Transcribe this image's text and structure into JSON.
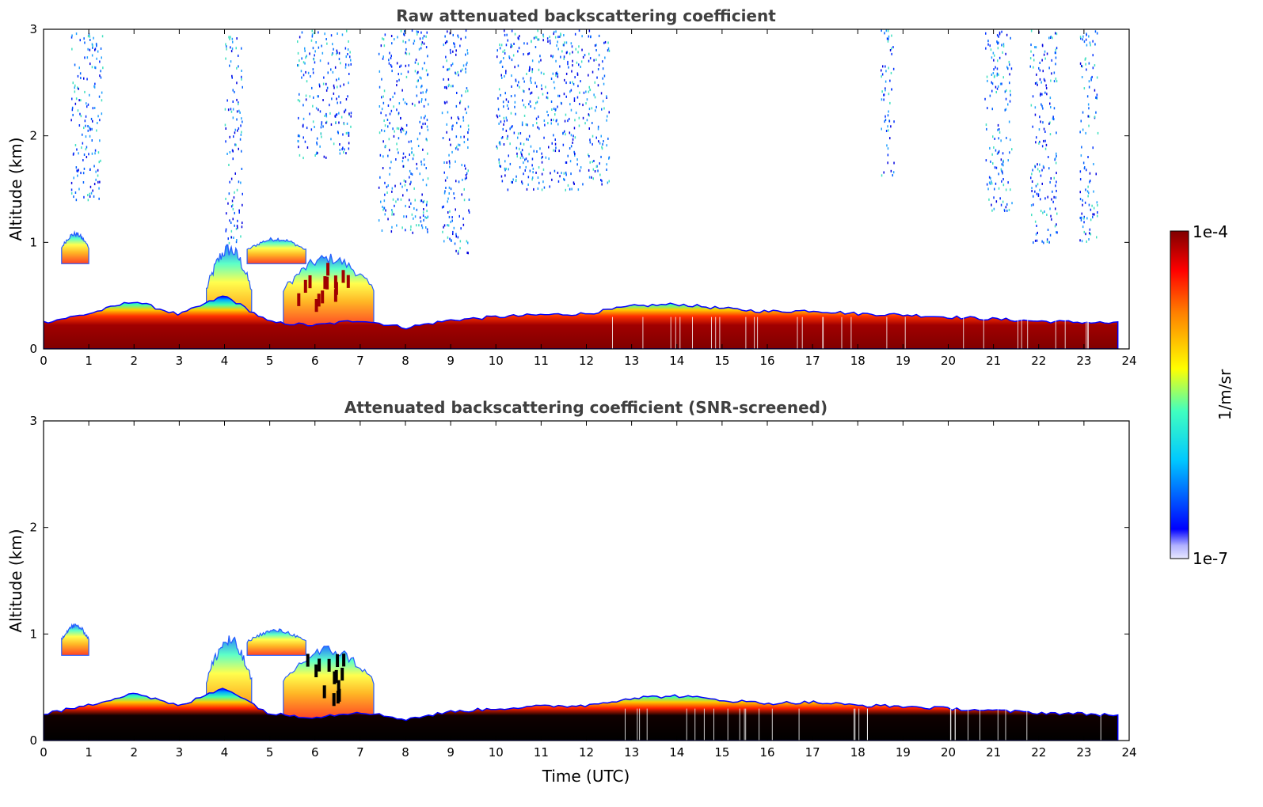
{
  "chart_data": [
    {
      "type": "heatmap",
      "title": "Raw attenuated backscattering coefficient",
      "xlabel": "",
      "ylabel": "Altitude (km)",
      "xlim": [
        0,
        24
      ],
      "ylim": [
        0,
        3
      ],
      "x_ticks": [
        "0",
        "1",
        "2",
        "3",
        "4",
        "5",
        "6",
        "7",
        "8",
        "9",
        "10",
        "11",
        "12",
        "13",
        "14",
        "15",
        "16",
        "17",
        "18",
        "19",
        "20",
        "21",
        "22",
        "23",
        "24"
      ],
      "y_ticks": [
        "0",
        "1",
        "2",
        "3"
      ],
      "data_end_time": 23.75,
      "surface_layer": {
        "top_km": [
          [
            0,
            0.25
          ],
          [
            1,
            0.33
          ],
          [
            2,
            0.45
          ],
          [
            3,
            0.32
          ],
          [
            4,
            0.5
          ],
          [
            5,
            0.25
          ],
          [
            6,
            0.22
          ],
          [
            7,
            0.27
          ],
          [
            8,
            0.2
          ],
          [
            9,
            0.27
          ],
          [
            10,
            0.3
          ],
          [
            11,
            0.32
          ],
          [
            12,
            0.33
          ],
          [
            13,
            0.4
          ],
          [
            14,
            0.42
          ],
          [
            15,
            0.38
          ],
          [
            16,
            0.35
          ],
          [
            17,
            0.36
          ],
          [
            18,
            0.33
          ],
          [
            19,
            0.32
          ],
          [
            20,
            0.3
          ],
          [
            21,
            0.28
          ],
          [
            22,
            0.26
          ],
          [
            23,
            0.25
          ],
          [
            23.75,
            0.24
          ]
        ]
      },
      "elevated_aerosol": [
        {
          "t_start": 3.6,
          "t_end": 4.6,
          "z_bottom_km": 0.1,
          "z_top_km": 1.0
        },
        {
          "t_start": 4.5,
          "t_end": 5.8,
          "z_bottom_km": 0.8,
          "z_top_km": 1.05
        },
        {
          "t_start": 5.3,
          "t_end": 7.3,
          "z_bottom_km": 0.2,
          "z_top_km": 0.9
        },
        {
          "t_start": 0.4,
          "t_end": 1.0,
          "z_bottom_km": 0.8,
          "z_top_km": 1.1
        }
      ],
      "sparse_noise_bands": [
        {
          "t_start": 0.6,
          "t_end": 1.3,
          "z_bottom_km": 1.4,
          "z_top_km": 3.0
        },
        {
          "t_start": 4.0,
          "t_end": 4.4,
          "z_bottom_km": 1.0,
          "z_top_km": 3.0
        },
        {
          "t_start": 5.6,
          "t_end": 6.8,
          "z_bottom_km": 1.8,
          "z_top_km": 3.0
        },
        {
          "t_start": 7.4,
          "t_end": 8.5,
          "z_bottom_km": 1.1,
          "z_top_km": 3.0
        },
        {
          "t_start": 8.8,
          "t_end": 9.4,
          "z_bottom_km": 0.9,
          "z_top_km": 3.0
        },
        {
          "t_start": 10.0,
          "t_end": 12.5,
          "z_bottom_km": 1.5,
          "z_top_km": 3.0
        },
        {
          "t_start": 18.5,
          "t_end": 18.8,
          "z_bottom_km": 1.6,
          "z_top_km": 3.0
        },
        {
          "t_start": 20.8,
          "t_end": 21.4,
          "z_bottom_km": 1.3,
          "z_top_km": 3.0
        },
        {
          "t_start": 21.8,
          "t_end": 22.4,
          "z_bottom_km": 1.0,
          "z_top_km": 3.0
        },
        {
          "t_start": 22.9,
          "t_end": 23.3,
          "z_bottom_km": 1.0,
          "z_top_km": 3.0
        }
      ]
    },
    {
      "type": "heatmap",
      "title": "Attenuated backscattering coefficient (SNR-screened)",
      "xlabel": "Time (UTC)",
      "ylabel": "Altitude (km)",
      "xlim": [
        0,
        24
      ],
      "ylim": [
        0,
        3
      ],
      "x_ticks": [
        "0",
        "1",
        "2",
        "3",
        "4",
        "5",
        "6",
        "7",
        "8",
        "9",
        "10",
        "11",
        "12",
        "13",
        "14",
        "15",
        "16",
        "17",
        "18",
        "19",
        "20",
        "21",
        "22",
        "23",
        "24"
      ],
      "y_ticks": [
        "0",
        "1",
        "2",
        "3"
      ],
      "data_end_time": 23.75,
      "saturated_color": "#000000"
    }
  ],
  "colorbar": {
    "max_label": "1e-4",
    "min_label": "1e-7",
    "units_label": "1/m/sr",
    "colormap": "jet",
    "low_color": "#e8e8ff",
    "high_color": "#800000"
  }
}
